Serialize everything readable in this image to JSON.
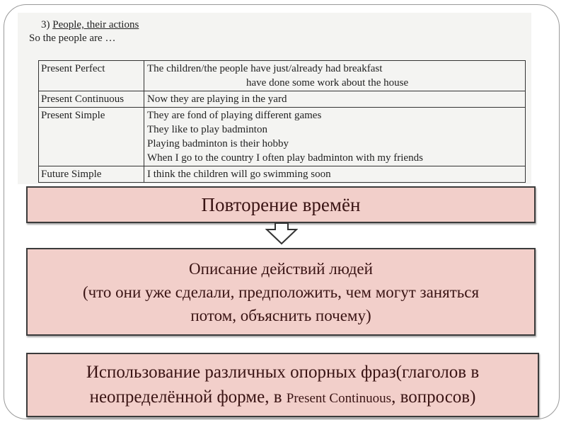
{
  "worksheet": {
    "heading_number": "3)",
    "heading": "People, their actions",
    "subheading": "So the people are …",
    "rows": [
      {
        "tense": "Present Perfect",
        "lines": [
          "The children/the people have just/already had breakfast",
          "have done some work about the house"
        ]
      },
      {
        "tense": "Present Continuous",
        "lines": [
          "Now they are playing in the yard"
        ]
      },
      {
        "tense": "Present Simple",
        "lines": [
          "They are fond of playing different games",
          "They like to play badminton",
          "Playing badminton is their hobby",
          "When I go to the country I often play badminton with my friends"
        ]
      },
      {
        "tense": "Future Simple",
        "lines": [
          "I think the children will go swimming soon"
        ]
      }
    ]
  },
  "boxes": {
    "review": "Повторение времён",
    "description_line1": "Описание действий людей",
    "description_line2": "(что они уже сделали, предположить, чем могут заняться",
    "description_line3": "потом, объяснить почему)",
    "phrases_line1": "Использование различных опорных фраз(глаголов в",
    "phrases_line2a": "неопределённой форме, в ",
    "phrases_line2b": "Present Continuous",
    "phrases_line2c": ", вопросов)"
  },
  "colors": {
    "box_fill": "#f2cfca",
    "box_text": "#3a1414",
    "box_border": "#3b3b3b"
  },
  "icons": {
    "arrow": "arrow-down-icon"
  }
}
